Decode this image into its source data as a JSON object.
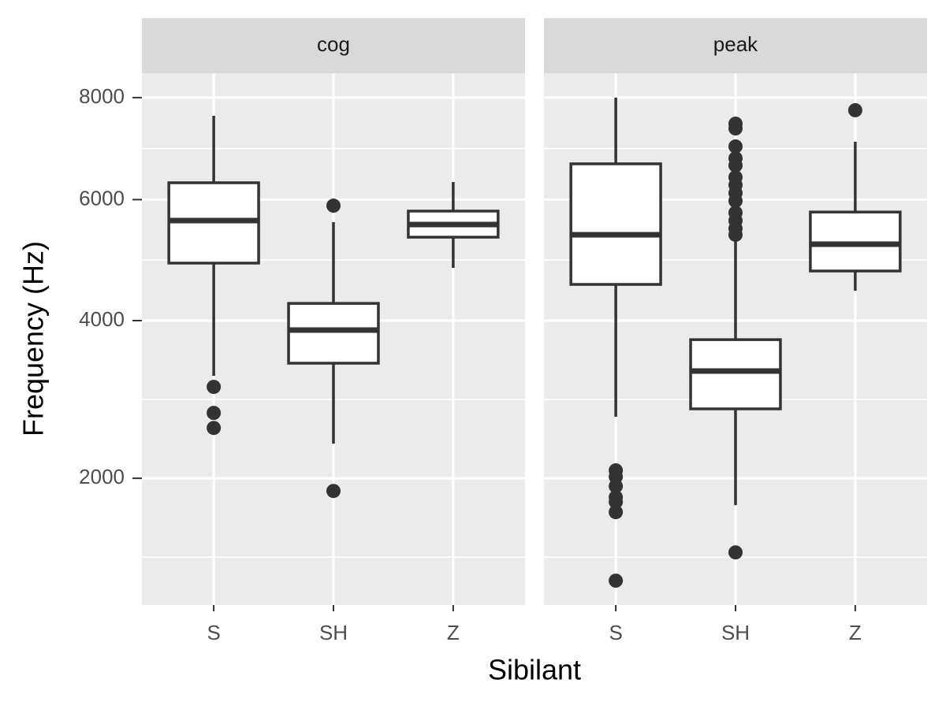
{
  "chart_data": {
    "type": "box",
    "y_label": "Frequency (Hz)",
    "x_label": "Sibilant",
    "y_scale": "sqrt",
    "ylim": [
      890,
      8520
    ],
    "yticks": [
      2000,
      4000,
      6000,
      8000
    ],
    "grid": true,
    "minor_grid": true,
    "color": "#333333",
    "fill": "#ffffff",
    "categories": [
      "S",
      "SH",
      "Z"
    ],
    "facets": [
      {
        "name": "cog",
        "boxes": [
          {
            "whisker_low": 3221,
            "q1": 4900,
            "median": 5625,
            "q3": 6311,
            "whisker_high": 7623,
            "outliers": [
              3076,
              2746,
              2564
            ]
          },
          {
            "whisker_low": 2380,
            "q1": 3392,
            "median": 3860,
            "q3": 4260,
            "whisker_high": 5597,
            "outliers": [
              5891,
              1869
            ]
          },
          {
            "whisker_low": 4822,
            "q1": 5336,
            "median": 5555,
            "q3": 5793,
            "whisker_high": 6325,
            "outliers": []
          }
        ]
      },
      {
        "name": "peak",
        "boxes": [
          {
            "whisker_low": 2698,
            "q1": 4556,
            "median": 5378,
            "q3": 6669,
            "whisker_high": 8000,
            "outliers": [
              2084,
              2016,
              1918,
              1806,
              1759,
              1660,
              1069
            ]
          },
          {
            "whisker_low": 1728,
            "q1": 2796,
            "median": 3285,
            "q3": 3722,
            "whisker_high": 5350,
            "outliers": [
              7462,
              7366,
              7006,
              6775,
              6639,
              6414,
              6268,
              6121,
              5977,
              5764,
              5624,
              5486,
              5378,
              1297
            ]
          },
          {
            "whisker_low": 4456,
            "q1": 4771,
            "median": 5216,
            "q3": 5776,
            "whisker_high": 7100,
            "outliers": [
              7737
            ]
          }
        ]
      }
    ]
  }
}
